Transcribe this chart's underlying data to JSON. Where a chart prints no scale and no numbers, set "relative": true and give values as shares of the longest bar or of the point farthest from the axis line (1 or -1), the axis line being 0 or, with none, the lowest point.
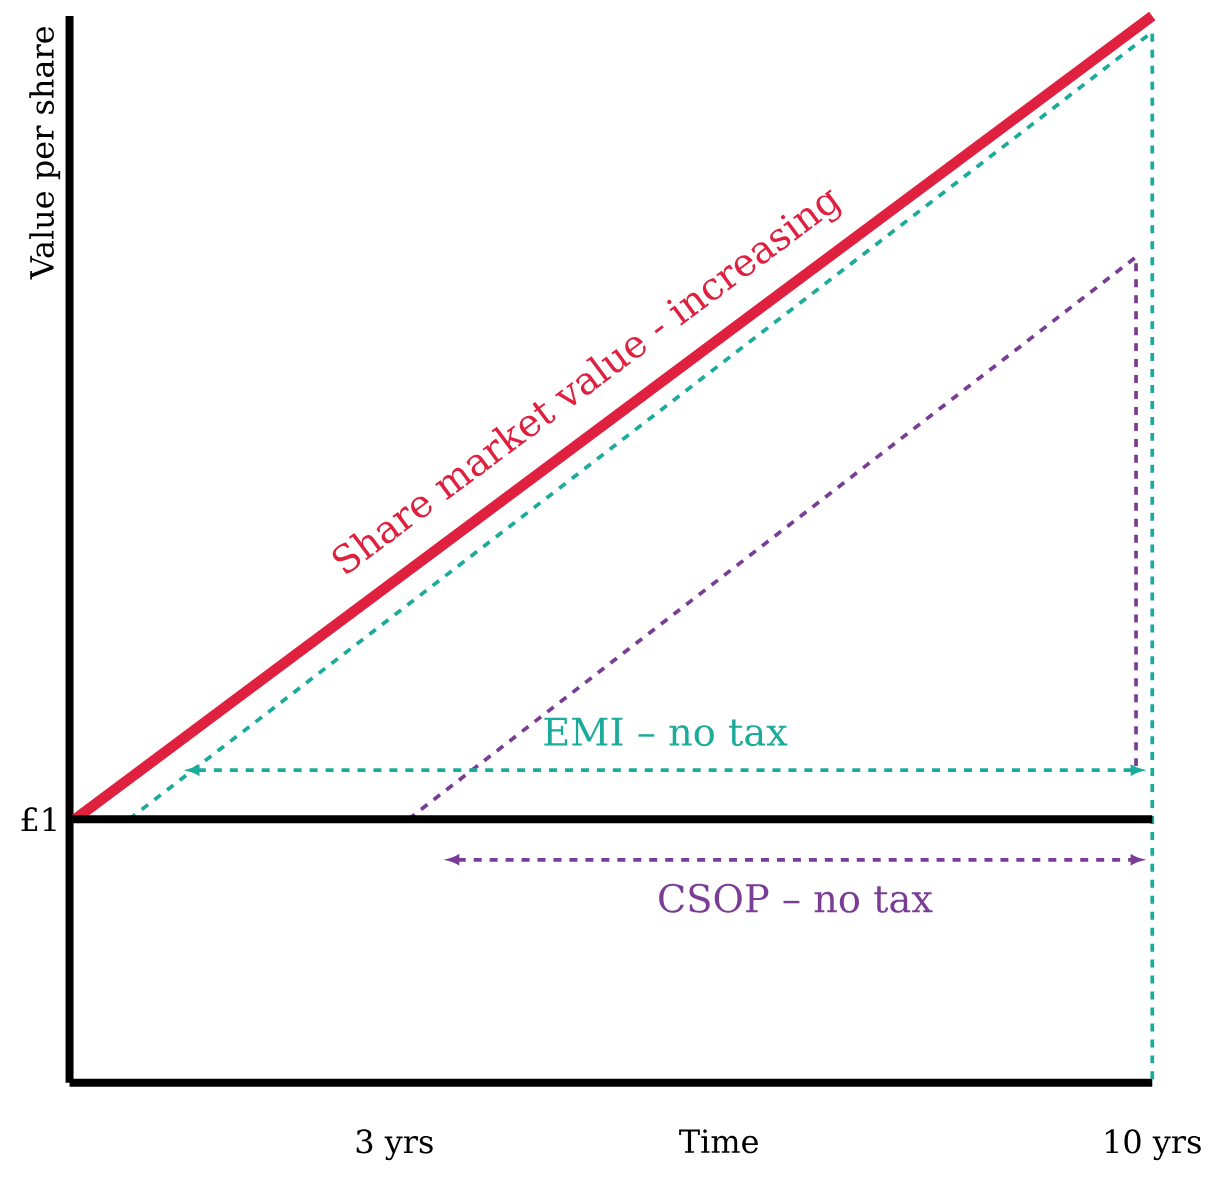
{
  "chart_data": {
    "type": "line",
    "relative": true,
    "xlabel": "Time",
    "ylabel": "Value per share",
    "marker": "none",
    "xlim": [
      0,
      10
    ],
    "xticks": [
      {
        "value": 3,
        "label": "3 yrs"
      },
      {
        "value": 10,
        "label": "10 yrs"
      }
    ],
    "series": [
      {
        "name": "Share market value - increasing",
        "color": "#e0203f",
        "line_style": "solid",
        "x": [
          0.05,
          10
        ],
        "values": [
          0.247,
          1
        ]
      },
      {
        "color": "#1aab9b",
        "line_style": "dashed",
        "x": [
          0.55,
          10,
          10
        ],
        "values": [
          0.247,
          0.985,
          0
        ]
      },
      {
        "color": "#7a3d96",
        "line_style": "dashed",
        "x": [
          3.13,
          9.85,
          9.85
        ],
        "values": [
          0.247,
          0.774,
          0.29
        ]
      },
      {
        "name": "EMI – no tax",
        "color": "#1aab9b",
        "line_style": "dashed",
        "marker": "triangle",
        "x": [
          1.2,
          9.8
        ],
        "values": [
          0.293,
          0.293
        ]
      },
      {
        "name": "CSOP – no tax",
        "color": "#7a3d96",
        "line_style": "dashed",
        "marker": "triangle",
        "x": [
          3.6,
          9.8
        ],
        "values": [
          0.209,
          0.209
        ]
      }
    ],
    "ref_lines": [
      {
        "axis": "y",
        "value": 0.247
      }
    ],
    "annotations": [
      {
        "text": "£1",
        "x": 0,
        "y": 0.247
      }
    ]
  }
}
